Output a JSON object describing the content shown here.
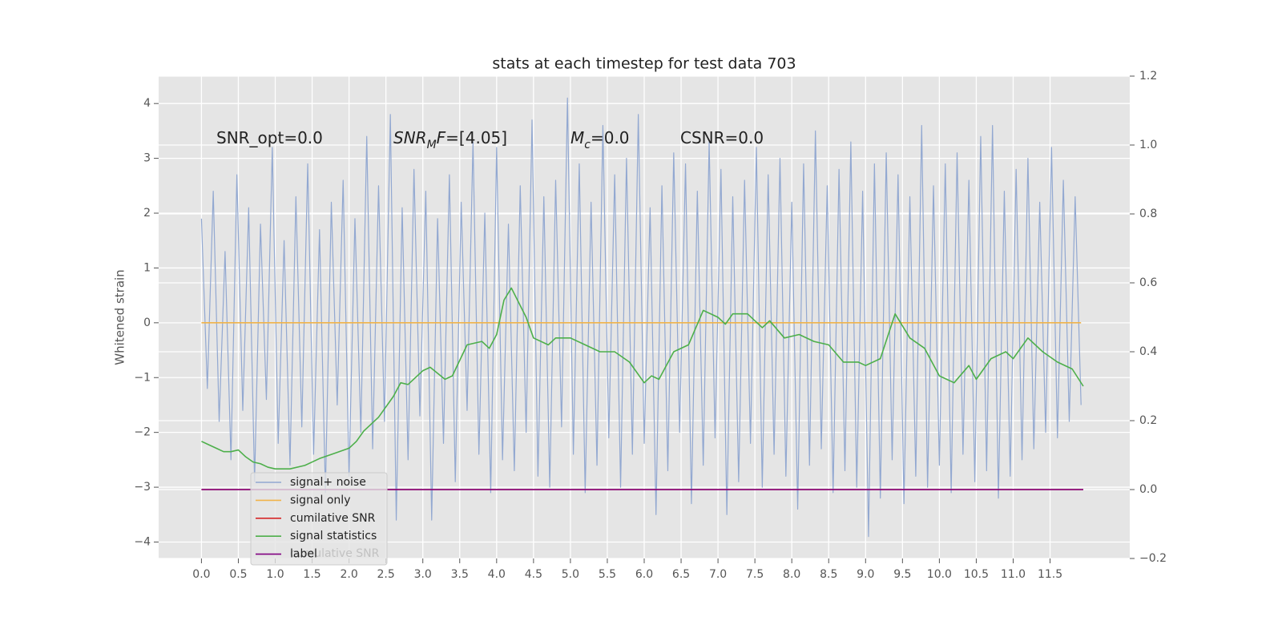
{
  "chart_data": {
    "type": "line",
    "title": "stats at each timestep for test data 703",
    "ylabel": "Whitened strain",
    "xlim": [
      -0.58,
      12.58
    ],
    "ylim": [
      -4.3,
      4.5
    ],
    "y2lim": [
      -0.2,
      1.2
    ],
    "grid": true,
    "legend": "lower left",
    "xticks": [
      {
        "value": 0,
        "label": "0.0"
      },
      0.5,
      {
        "value": 1,
        "label": "1.0"
      },
      1.5,
      {
        "value": 2,
        "label": "2.0"
      },
      2.5,
      {
        "value": 3,
        "label": "3.0"
      },
      3.5,
      {
        "value": 4,
        "label": "4.0"
      },
      4.5,
      {
        "value": 5,
        "label": "5.0"
      },
      5.5,
      {
        "value": 6,
        "label": "6.0"
      },
      6.5,
      {
        "value": 7,
        "label": "7.0"
      },
      7.5,
      {
        "value": 8,
        "label": "8.0"
      },
      8.5,
      {
        "value": 9,
        "label": "9.0"
      },
      9.5,
      {
        "value": 10,
        "label": "10.0"
      },
      10.5,
      {
        "value": 11,
        "label": "11.0"
      },
      11.5
    ],
    "yticks": [
      {
        "value": -4,
        "label": "−4"
      },
      {
        "value": -3,
        "label": "−3"
      },
      {
        "value": -2,
        "label": "−2"
      },
      {
        "value": -1,
        "label": "−1"
      },
      0,
      1,
      2,
      3,
      4
    ],
    "y2ticks": [
      {
        "value": -0.2,
        "label": "−0.2"
      },
      {
        "value": 0,
        "label": "0.0"
      },
      0.2,
      0.4,
      0.6,
      0.8,
      {
        "value": 1,
        "label": "1.0"
      },
      1.2
    ],
    "annotations": [
      {
        "parts": [
          {
            "text": "SNR_opt=0.0"
          }
        ]
      },
      {
        "parts": [
          {
            "text": "SNR",
            "style": "italic"
          },
          {
            "text": "M",
            "style": "sub"
          },
          {
            "text": "F",
            "style": "italic"
          },
          {
            "text": "=[4.05]"
          }
        ]
      },
      {
        "parts": [
          {
            "text": "M",
            "style": "italic"
          },
          {
            "text": "c",
            "style": "sub"
          },
          {
            "text": "=0.0"
          }
        ]
      },
      {
        "parts": [
          {
            "text": "CSNR=0.0"
          }
        ]
      }
    ],
    "secondary_legend": [
      "cumulative SNR"
    ],
    "series": [
      {
        "name": "signal+ noise",
        "color": "#92a8d1",
        "x": [
          0,
          0.08,
          0.16,
          0.24,
          0.32,
          0.4,
          0.48,
          0.56,
          0.64,
          0.72,
          0.8,
          0.88,
          0.96,
          1.04,
          1.12,
          1.2,
          1.28,
          1.36,
          1.44,
          1.52,
          1.6,
          1.68,
          1.76,
          1.84,
          1.92,
          2,
          2.08,
          2.16,
          2.24,
          2.32,
          2.4,
          2.48,
          2.56,
          2.64,
          2.72,
          2.8,
          2.88,
          2.96,
          3.04,
          3.12,
          3.2,
          3.28,
          3.36,
          3.44,
          3.52,
          3.6,
          3.68,
          3.76,
          3.84,
          3.92,
          4,
          4.08,
          4.16,
          4.24,
          4.32,
          4.4,
          4.48,
          4.56,
          4.64,
          4.72,
          4.8,
          4.88,
          4.96,
          5.04,
          5.12,
          5.2,
          5.28,
          5.36,
          5.44,
          5.52,
          5.6,
          5.68,
          5.76,
          5.84,
          5.92,
          6,
          6.08,
          6.16,
          6.24,
          6.32,
          6.4,
          6.48,
          6.56,
          6.64,
          6.72,
          6.8,
          6.88,
          6.96,
          7.04,
          7.12,
          7.2,
          7.28,
          7.36,
          7.44,
          7.52,
          7.6,
          7.68,
          7.76,
          7.84,
          7.92,
          8,
          8.08,
          8.16,
          8.24,
          8.32,
          8.4,
          8.48,
          8.56,
          8.64,
          8.72,
          8.8,
          8.88,
          8.96,
          9.04,
          9.12,
          9.2,
          9.28,
          9.36,
          9.44,
          9.52,
          9.6,
          9.68,
          9.76,
          9.84,
          9.92,
          10,
          10.08,
          10.16,
          10.24,
          10.32,
          10.4,
          10.48,
          10.56,
          10.64,
          10.72,
          10.8,
          10.88,
          10.96,
          11.04,
          11.12,
          11.2,
          11.28,
          11.36,
          11.44,
          11.52,
          11.6,
          11.68,
          11.76,
          11.84,
          11.92
        ],
        "values": [
          1.9,
          -1.2,
          2.4,
          -1.8,
          1.3,
          -2.5,
          2.7,
          -1.6,
          2.1,
          -2.9,
          1.8,
          -1.4,
          3.2,
          -2.2,
          1.5,
          -2.6,
          2.3,
          -1.9,
          2.9,
          -2.4,
          1.7,
          -3.1,
          2.2,
          -1.5,
          2.6,
          -2.8,
          1.9,
          -2.0,
          3.4,
          -2.3,
          2.5,
          -1.8,
          3.8,
          -3.6,
          2.1,
          -2.5,
          2.8,
          -1.7,
          2.4,
          -3.6,
          1.9,
          -2.2,
          2.7,
          -2.9,
          2.2,
          -1.6,
          3.3,
          -2.4,
          2.0,
          -3.1,
          3.2,
          -2.5,
          1.8,
          -2.7,
          2.5,
          -2.0,
          3.7,
          -2.8,
          2.3,
          -3.0,
          2.6,
          -1.9,
          4.1,
          -2.4,
          2.9,
          -3.1,
          2.2,
          -2.6,
          3.6,
          -2.1,
          2.7,
          -3.0,
          3.0,
          -2.4,
          3.8,
          -2.2,
          2.1,
          -3.5,
          2.5,
          -2.7,
          3.1,
          -2.0,
          2.9,
          -3.3,
          2.4,
          -2.6,
          3.3,
          -2.1,
          2.8,
          -3.5,
          2.3,
          -2.9,
          2.6,
          -2.2,
          3.2,
          -3.0,
          2.7,
          -2.4,
          3.0,
          -2.8,
          2.2,
          -3.4,
          2.9,
          -2.6,
          3.5,
          -2.3,
          2.5,
          -3.1,
          2.8,
          -2.7,
          3.3,
          -3.0,
          2.4,
          -3.9,
          2.9,
          -3.2,
          3.1,
          -2.5,
          2.7,
          -3.3,
          2.3,
          -2.8,
          3.6,
          -3.0,
          2.5,
          -2.6,
          2.9,
          -3.1,
          3.1,
          -2.4,
          2.6,
          -2.9,
          3.4,
          -2.7,
          3.6,
          -3.2,
          2.4,
          -2.8,
          2.8,
          -2.5,
          3.0,
          -2.3,
          2.2,
          -2.0,
          3.2,
          -2.1,
          2.6,
          -1.8,
          2.3,
          -1.5
        ]
      },
      {
        "name": "signal only",
        "color": "#f0b34a",
        "x": [
          0,
          11.92
        ],
        "values": [
          0,
          0
        ]
      },
      {
        "name": "cumilative SNR",
        "color": "#d62728",
        "axis": "y2",
        "x": [
          0,
          11.95
        ],
        "values": [
          0,
          0
        ]
      },
      {
        "name": "signal statistics",
        "color": "#4daf4a",
        "axis": "y2",
        "x": [
          0,
          0.1,
          0.2,
          0.3,
          0.4,
          0.5,
          0.6,
          0.7,
          0.8,
          0.9,
          1.0,
          1.2,
          1.4,
          1.6,
          1.8,
          2.0,
          2.1,
          2.2,
          2.4,
          2.6,
          2.7,
          2.8,
          3.0,
          3.1,
          3.3,
          3.4,
          3.6,
          3.8,
          3.9,
          4.0,
          4.1,
          4.2,
          4.4,
          4.5,
          4.7,
          4.8,
          5.0,
          5.2,
          5.4,
          5.6,
          5.8,
          6.0,
          6.1,
          6.2,
          6.4,
          6.6,
          6.8,
          7.0,
          7.1,
          7.2,
          7.4,
          7.6,
          7.7,
          7.9,
          8.1,
          8.3,
          8.5,
          8.7,
          8.9,
          9.0,
          9.2,
          9.4,
          9.6,
          9.8,
          10.0,
          10.2,
          10.4,
          10.5,
          10.7,
          10.9,
          11.0,
          11.2,
          11.4,
          11.6,
          11.8,
          11.95
        ],
        "values": [
          0.14,
          0.13,
          0.12,
          0.11,
          0.11,
          0.115,
          0.095,
          0.08,
          0.075,
          0.065,
          0.06,
          0.06,
          0.07,
          0.09,
          0.105,
          0.12,
          0.14,
          0.17,
          0.21,
          0.27,
          0.31,
          0.305,
          0.345,
          0.355,
          0.32,
          0.33,
          0.42,
          0.43,
          0.41,
          0.45,
          0.55,
          0.585,
          0.5,
          0.44,
          0.42,
          0.44,
          0.44,
          0.42,
          0.4,
          0.4,
          0.37,
          0.31,
          0.33,
          0.32,
          0.4,
          0.42,
          0.52,
          0.5,
          0.48,
          0.51,
          0.51,
          0.47,
          0.49,
          0.44,
          0.45,
          0.43,
          0.42,
          0.37,
          0.37,
          0.36,
          0.38,
          0.51,
          0.44,
          0.41,
          0.33,
          0.31,
          0.36,
          0.32,
          0.38,
          0.4,
          0.38,
          0.44,
          0.4,
          0.37,
          0.35,
          0.3
        ]
      },
      {
        "name": "label",
        "color": "#800080",
        "axis": "y2",
        "x": [
          0,
          11.95
        ],
        "values": [
          0,
          0
        ]
      }
    ]
  }
}
